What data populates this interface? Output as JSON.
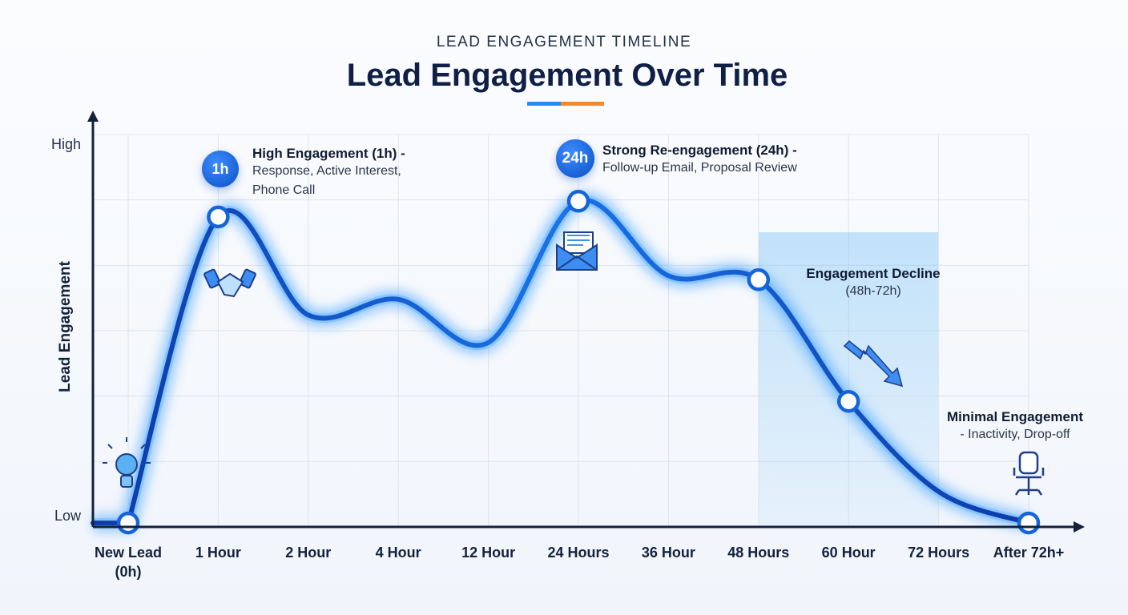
{
  "chart_data": {
    "type": "line",
    "subtitle": "LEAD ENGAGEMENT TIMELINE",
    "title": "Lead Engagement Over Time",
    "y_label": "Lead Engagement",
    "categories": [
      "New Lead (0h)",
      "1 Hour",
      "2 Hour",
      "4 Hour",
      "12 Hour",
      "24 Hours",
      "36 Hour",
      "48 Hours",
      "60 Hour",
      "72 Hours",
      "After 72h+"
    ],
    "values": [
      1,
      79,
      54,
      58,
      47,
      83,
      64,
      63,
      32,
      9,
      1
    ],
    "markers": [
      0,
      1,
      5,
      7,
      8,
      10
    ],
    "color": "#1565d8",
    "ylim": [
      0,
      100
    ],
    "yticks": [
      {
        "value": 0,
        "label": "Low"
      },
      {
        "value": 100,
        "label": "High"
      }
    ],
    "grid": true,
    "annotations": [
      {
        "badge": "1h",
        "title": "High Engagement (1h) -",
        "text": "Response, Active Interest, Phone Call"
      },
      {
        "badge": "24h",
        "title": "Strong Re-engagement (24h) -",
        "text": "Follow-up Email, Proposal Review"
      },
      {
        "title": "Engagement Decline",
        "text": "(48h-72h)"
      },
      {
        "title": "Minimal Engagement",
        "text": "- Inactivity, Drop-off"
      }
    ]
  }
}
